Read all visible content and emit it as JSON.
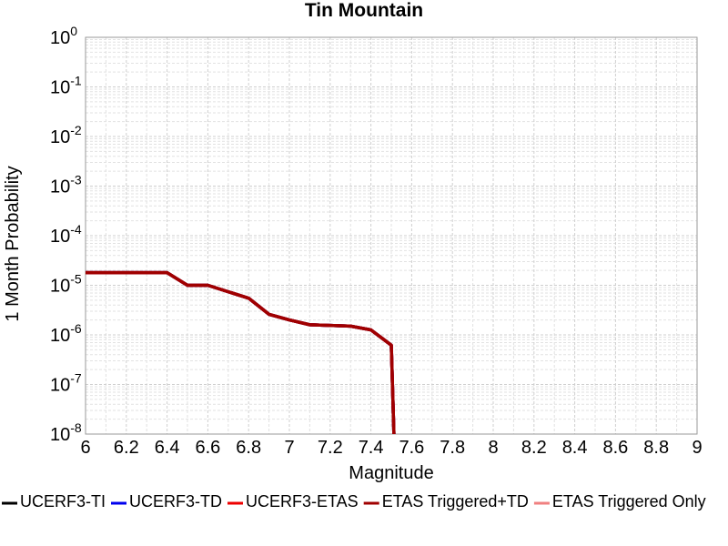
{
  "chart_data": {
    "type": "line",
    "title": "Tin Mountain",
    "x_label": "Magnitude",
    "y_label": "1 Month Probability",
    "log_y": true,
    "grid": true,
    "legend_position": "bottom",
    "x": [
      6.0,
      6.1,
      6.2,
      6.3,
      6.4,
      6.5,
      6.6,
      6.7,
      6.8,
      6.9,
      7.0,
      7.1,
      7.2,
      7.3,
      7.4,
      7.5,
      7.52
    ],
    "series": [
      {
        "name": "UCERF3-TI",
        "color": "#000000",
        "values": [
          1.8e-05,
          1.8e-05,
          1.8e-05,
          1.8e-05,
          1.8e-05,
          1e-05,
          1e-05,
          7.4e-06,
          5.5e-06,
          2.6e-06,
          2e-06,
          1.6e-06,
          1.55e-06,
          1.5e-06,
          1.26e-06,
          6.2e-07,
          1e-09
        ]
      },
      {
        "name": "UCERF3-TD",
        "color": "#0000ee",
        "values": [
          1.8e-05,
          1.8e-05,
          1.8e-05,
          1.8e-05,
          1.8e-05,
          1e-05,
          1e-05,
          7.4e-06,
          5.5e-06,
          2.6e-06,
          2e-06,
          1.6e-06,
          1.55e-06,
          1.5e-06,
          1.26e-06,
          6.2e-07,
          1e-09
        ]
      },
      {
        "name": "UCERF3-ETAS",
        "color": "#ee0000",
        "values": [
          1.8e-05,
          1.8e-05,
          1.8e-05,
          1.8e-05,
          1.8e-05,
          1e-05,
          1e-05,
          7.4e-06,
          5.5e-06,
          2.6e-06,
          2e-06,
          1.6e-06,
          1.55e-06,
          1.5e-06,
          1.26e-06,
          6.2e-07,
          1e-09
        ]
      },
      {
        "name": "ETAS Triggered+TD",
        "color": "#a00000",
        "values": [
          1.8e-05,
          1.8e-05,
          1.8e-05,
          1.8e-05,
          1.8e-05,
          1e-05,
          1e-05,
          7.4e-06,
          5.5e-06,
          2.6e-06,
          2e-06,
          1.6e-06,
          1.55e-06,
          1.5e-06,
          1.26e-06,
          6.2e-07,
          1e-09
        ]
      },
      {
        "name": "ETAS Triggered Only",
        "color": "#f08080",
        "values": [
          1.8e-05,
          1.8e-05,
          1.8e-05,
          1.8e-05,
          1.8e-05,
          1e-05,
          1e-05,
          7.4e-06,
          5.5e-06,
          2.6e-06,
          2e-06,
          1.6e-06,
          1.55e-06,
          1.5e-06,
          1.26e-06,
          6.2e-07,
          1e-09
        ]
      }
    ],
    "draw_order": [
      4,
      0,
      1,
      2,
      3
    ],
    "xlim": [
      6,
      9
    ],
    "xticks": [
      6,
      6.2,
      6.4,
      6.6,
      6.8,
      7,
      7.2,
      7.4,
      7.6,
      7.8,
      8,
      8.2,
      8.4,
      8.6,
      8.8,
      9
    ],
    "ylim": [
      1e-08,
      1
    ],
    "yticks": [
      {
        "value": 1e-08,
        "label": "10^-8"
      },
      {
        "value": 1e-07,
        "label": "10^-7"
      },
      {
        "value": 1e-06,
        "label": "10^-6"
      },
      {
        "value": 1e-05,
        "label": "10^-5"
      },
      {
        "value": 0.0001,
        "label": "10^-4"
      },
      {
        "value": 0.001,
        "label": "10^-3"
      },
      {
        "value": 0.01,
        "label": "10^-2"
      },
      {
        "value": 0.1,
        "label": "10^-1"
      },
      {
        "value": 1,
        "label": "10^0"
      }
    ]
  }
}
